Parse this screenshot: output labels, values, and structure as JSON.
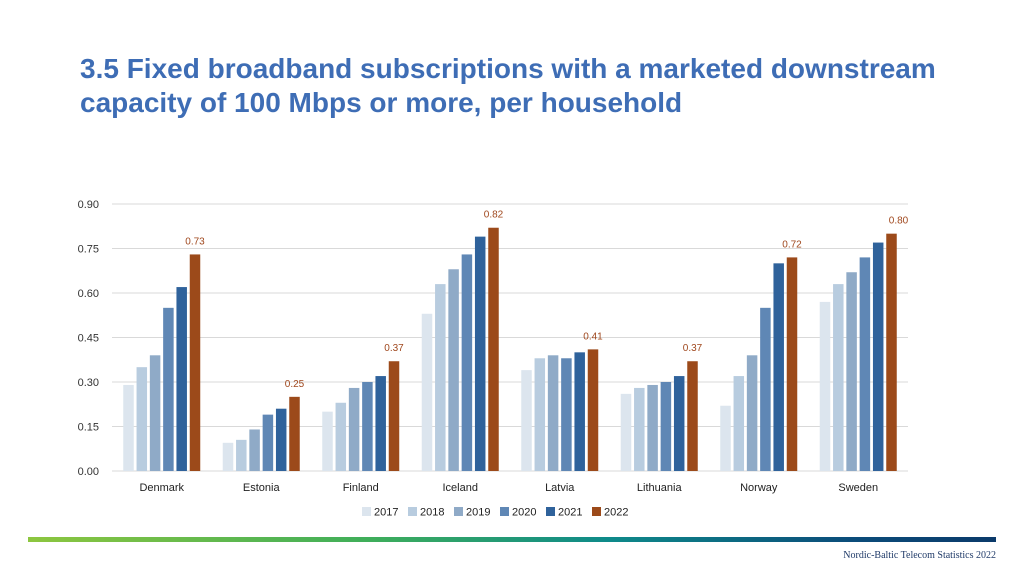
{
  "title": "3.5 Fixed broadband subscriptions with a marketed downstream capacity of 100 Mbps or more, per household",
  "footer": "Nordic-Baltic Telecom Statistics 2022",
  "colors": {
    "title": "#3E6DB5",
    "series": [
      "#DCE5EE",
      "#B8CCDF",
      "#8FAAC7",
      "#5F87B5",
      "#2F629B",
      "#9C4A1A"
    ],
    "label": "#A0481E",
    "grid": "#D9D9D9"
  },
  "chart_data": {
    "type": "bar",
    "categories": [
      "Denmark",
      "Estonia",
      "Finland",
      "Iceland",
      "Latvia",
      "Lithuania",
      "Norway",
      "Sweden"
    ],
    "series": [
      {
        "name": "2017",
        "values": [
          0.29,
          0.095,
          0.2,
          0.53,
          0.34,
          0.26,
          0.22,
          0.57
        ]
      },
      {
        "name": "2018",
        "values": [
          0.35,
          0.105,
          0.23,
          0.63,
          0.38,
          0.28,
          0.32,
          0.63
        ]
      },
      {
        "name": "2019",
        "values": [
          0.39,
          0.14,
          0.28,
          0.68,
          0.39,
          0.29,
          0.39,
          0.67
        ]
      },
      {
        "name": "2020",
        "values": [
          0.55,
          0.19,
          0.3,
          0.73,
          0.38,
          0.3,
          0.55,
          0.72
        ]
      },
      {
        "name": "2021",
        "values": [
          0.62,
          0.21,
          0.32,
          0.79,
          0.4,
          0.32,
          0.7,
          0.77
        ]
      },
      {
        "name": "2022",
        "values": [
          0.73,
          0.25,
          0.37,
          0.82,
          0.41,
          0.37,
          0.72,
          0.8
        ]
      }
    ],
    "data_labels_2022": [
      "0.73",
      "0.25",
      "0.37",
      "0.82",
      "0.41",
      "0.37",
      "0.72",
      "0.80"
    ],
    "y_ticks": [
      "0.00",
      "0.15",
      "0.30",
      "0.45",
      "0.60",
      "0.75",
      "0.90"
    ],
    "ylim": [
      0,
      0.9
    ],
    "grid": true,
    "legend_position": "bottom",
    "title": "",
    "xlabel": "",
    "ylabel": ""
  }
}
